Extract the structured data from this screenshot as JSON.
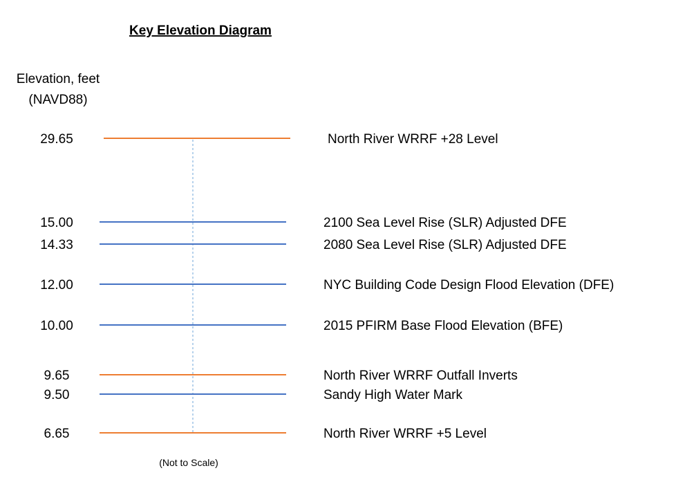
{
  "title": "Key Elevation Diagram",
  "axis": {
    "label_line1": "Elevation, feet",
    "label_line2": "(NAVD88)"
  },
  "footnote": "(Not to Scale)",
  "colors": {
    "orange": "#ed7d31",
    "blue": "#4472c4",
    "guide": "#9dc3e6"
  },
  "levels": [
    {
      "value": "29.65",
      "label": "North River WRRF +28 Level",
      "color": "orange"
    },
    {
      "value": "15.00",
      "label": "2100 Sea Level Rise (SLR) Adjusted DFE",
      "color": "blue"
    },
    {
      "value": "14.33",
      "label": "2080 Sea Level Rise (SLR) Adjusted DFE",
      "color": "blue"
    },
    {
      "value": "12.00",
      "label": "NYC Building Code Design Flood Elevation (DFE)",
      "color": "blue"
    },
    {
      "value": "10.00",
      "label": "2015 PFIRM Base Flood Elevation (BFE)",
      "color": "blue"
    },
    {
      "value": "9.65",
      "label": "North River WRRF Outfall Inverts",
      "color": "orange"
    },
    {
      "value": "9.50",
      "label": "Sandy High Water Mark",
      "color": "blue"
    },
    {
      "value": "6.65",
      "label": "North River WRRF +5 Level",
      "color": "orange"
    }
  ]
}
